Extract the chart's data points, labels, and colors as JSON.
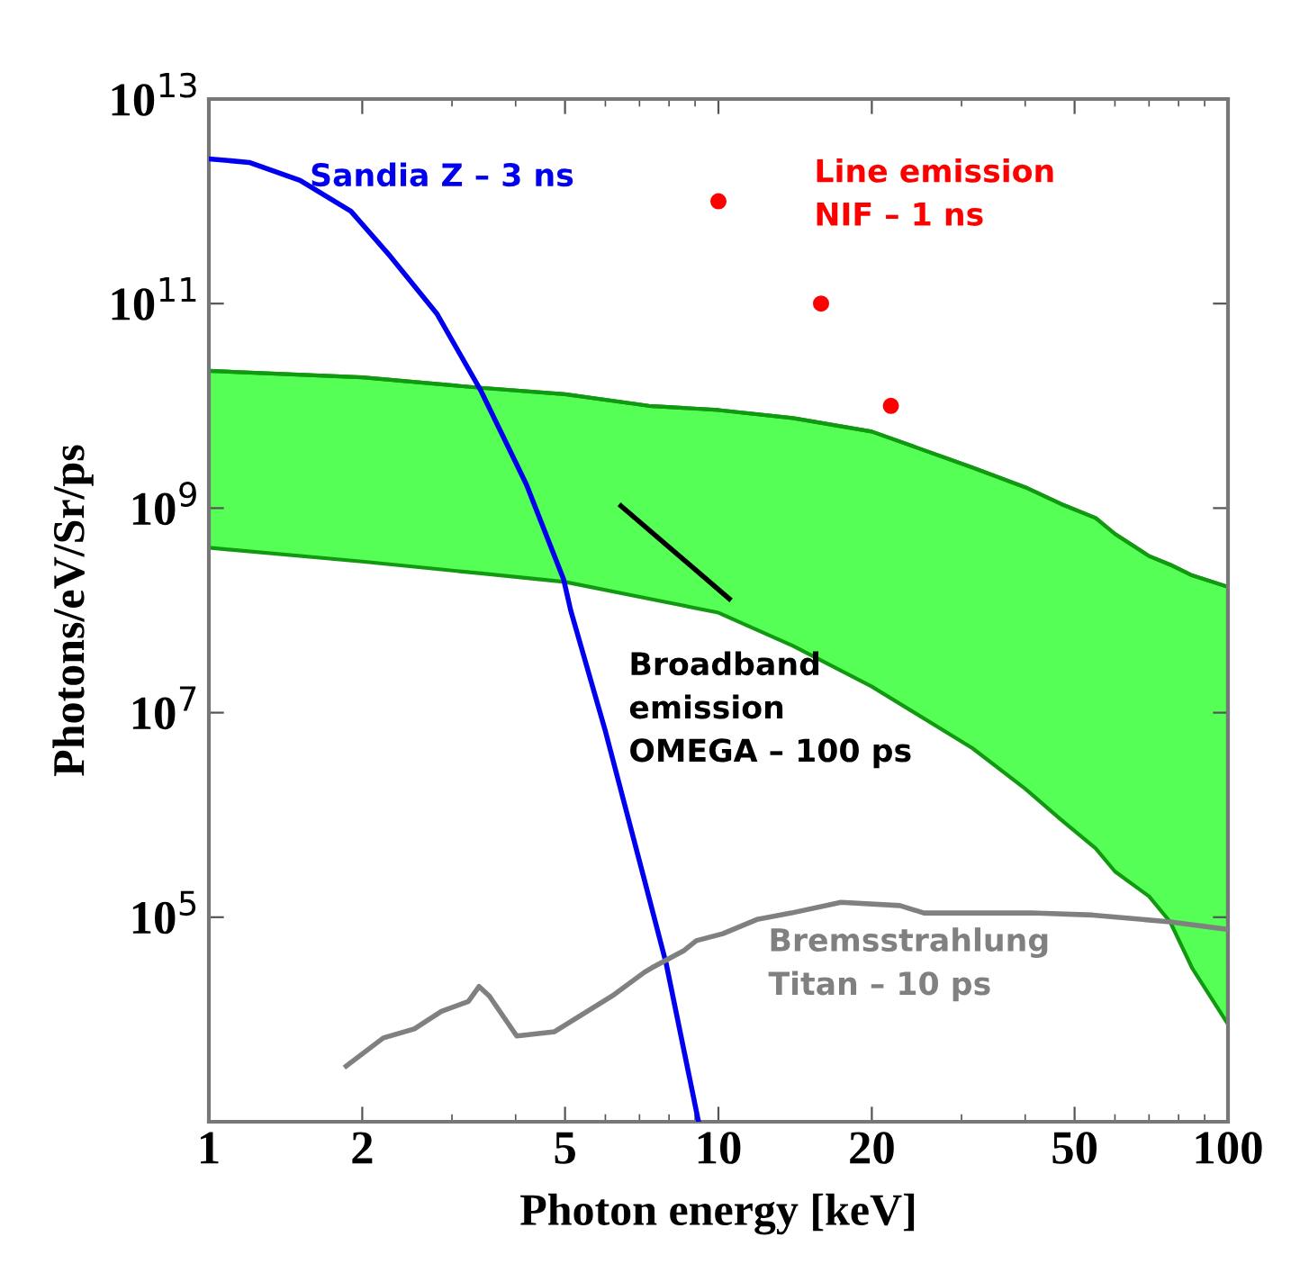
{
  "chart_data": {
    "type": "line",
    "xlabel": "Photon energy [keV]",
    "ylabel": "Photons/eV/Sr/ps",
    "log": "xy",
    "grid": false,
    "xlim": [
      1,
      100
    ],
    "xticks": [
      1,
      2,
      5,
      10,
      20,
      50,
      100
    ],
    "ylim": [
      1000,
      10000000000000.0
    ],
    "yticks": [
      {
        "value": 100000.0,
        "label": "10$^{5}$"
      },
      {
        "value": 10000000.0,
        "label": "10$^{7}$"
      },
      {
        "value": 1000000000.0,
        "label": "10$^{9}$"
      },
      {
        "value": 100000000000.0,
        "label": "10$^{11}$"
      },
      {
        "value": 10000000000000.0,
        "label": "10$^{13}$"
      }
    ],
    "series": [
      {
        "name": "Sandia Z – 3 ns",
        "color": "#0000ee",
        "x": [
          1,
          1.2,
          1.51,
          1.9,
          2.27,
          2.8,
          3.42,
          4.2,
          4.97,
          5.13,
          6,
          7.16,
          7.9,
          9.14
        ],
        "values": [
          2600000000000.0,
          2400000000000.0,
          1600000000000.0,
          800000000000.0,
          290000000000.0,
          80000000000.0,
          14000000000.0,
          1700000000.0,
          200000000.0,
          100000000.0,
          6600000.0,
          230000.0,
          35000.0,
          1000
        ]
      },
      {
        "name": "Line emission\nNIF – 1 ns",
        "type": "scatter",
        "color": "#ff0000",
        "marker": "circle",
        "x": [
          10,
          15.9,
          21.8
        ],
        "values": [
          1000000000000.0,
          100000000000.0,
          10000000000.0
        ]
      },
      {
        "color": "#119911",
        "x": [
          1,
          2,
          3.42,
          5,
          7.3,
          10,
          14,
          20,
          31.5,
          40,
          47,
          55,
          60,
          70,
          77,
          85,
          100
        ],
        "values": [
          22000000000.0,
          19000000000.0,
          15000000000.0,
          13000000000.0,
          10000000000.0,
          9100000000.0,
          7600000000.0,
          5600000000.0,
          2500000000.0,
          1600000000.0,
          1100000000.0,
          800000000.0,
          560000000.0,
          340000000.0,
          280000000.0,
          220000000.0,
          170000000.0
        ],
        "upper": [
          22000000000.0,
          19000000000.0,
          15000000000.0,
          13000000000.0,
          10000000000.0,
          9100000000.0,
          7600000000.0,
          5600000000.0,
          2500000000.0,
          1600000000.0,
          1100000000.0,
          800000000.0,
          560000000.0,
          340000000.0,
          280000000.0,
          220000000.0,
          170000000.0
        ],
        "lower": [
          410000000.0,
          300000000.0,
          230000000.0,
          190000000.0,
          130000000.0,
          95000000.0,
          45000000.0,
          18000000.0,
          4500000.0,
          1800000.0,
          900000.0,
          470000.0,
          280000.0,
          160000.0,
          90000.0,
          32000.0,
          9000.0
        ]
      },
      {
        "name": "Broadband\nemission\nOMEGA – 100 ps",
        "color": "#000000",
        "x": [
          6.44,
          10.5
        ],
        "values": [
          1050000000.0,
          130000000.0
        ]
      },
      {
        "name": "Bremsstrahlung\nTitan – 10 ps",
        "color": "#808080",
        "x": [
          1.86,
          2.2,
          2.53,
          2.86,
          3.23,
          3.39,
          3.55,
          4.02,
          4.77,
          6.19,
          7.16,
          7.4,
          8.55,
          9.05,
          10.2,
          11.9,
          13.9,
          17.4,
          22.7,
          25.3,
          41.1,
          54.3,
          77,
          100
        ],
        "values": [
          3500,
          6600,
          8100,
          12000,
          15000,
          21000,
          17000,
          6900,
          7600,
          17000,
          29000,
          32000,
          47000,
          59000,
          69000,
          95000,
          110000,
          140000,
          130000,
          110000,
          110000,
          105000,
          90000,
          76000
        ]
      }
    ]
  }
}
